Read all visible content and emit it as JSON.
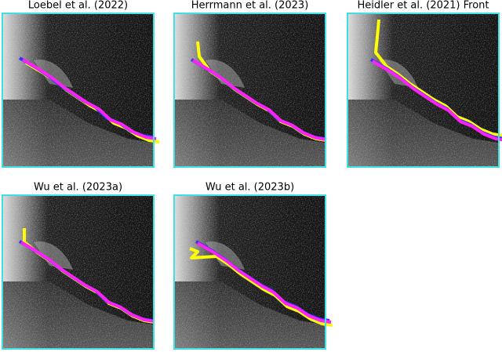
{
  "panels": [
    {
      "title": "Loebel et al. (2022)"
    },
    {
      "title": "Herrmann et al. (2023)"
    },
    {
      "title": "Heidler et al. (2021) Front"
    },
    {
      "title": "Wu et al. (2023a)"
    },
    {
      "title": "Wu et al. (2023b)"
    }
  ]
}
